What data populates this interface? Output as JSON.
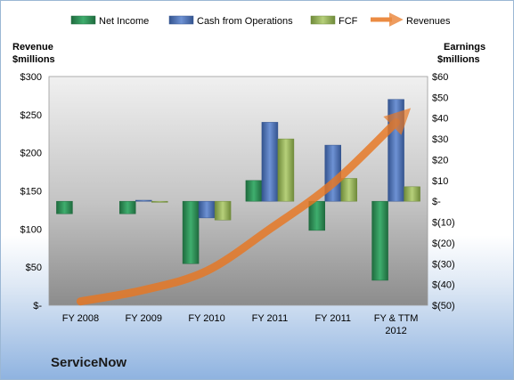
{
  "chart_data": {
    "type": "bar",
    "title": "",
    "company": "ServiceNow",
    "categories": [
      "FY 2008",
      "FY 2009",
      "FY 2010",
      "FY 2011",
      "FY 2011",
      "FY & TTM|2012"
    ],
    "left_axis": {
      "label_line1": "Revenue",
      "label_line2": "$millions",
      "range": [
        0,
        300
      ],
      "ticks": [
        0,
        50,
        100,
        150,
        200,
        250,
        300
      ],
      "tick_labels": [
        "$-",
        "$50",
        "$100",
        "$150",
        "$200",
        "$250",
        "$300"
      ]
    },
    "right_axis": {
      "label_line1": "Earnings",
      "label_line2": "$millions",
      "range": [
        -50,
        60
      ],
      "ticks": [
        -50,
        -40,
        -30,
        -20,
        -10,
        0,
        10,
        20,
        30,
        40,
        50,
        60
      ],
      "tick_labels": [
        "$(50)",
        "$(40)",
        "$(30)",
        "$(20)",
        "$(10)",
        "$-",
        "$10",
        "$20",
        "$30",
        "$40",
        "$50",
        "$60"
      ]
    },
    "series": [
      {
        "name": "Net Income",
        "type": "bar",
        "axis": "right",
        "color": "#2e8b57",
        "values": [
          -6,
          -6,
          -30,
          10,
          -14,
          -38
        ]
      },
      {
        "name": "Cash from Operations",
        "type": "bar",
        "axis": "right",
        "color": "#4f74b8",
        "values": [
          null,
          0.5,
          -8,
          38,
          27,
          49
        ]
      },
      {
        "name": "FCF",
        "type": "bar",
        "axis": "right",
        "color": "#9bbb59",
        "values": [
          null,
          -0.5,
          -9,
          30,
          11,
          7
        ]
      },
      {
        "name": "Revenues",
        "type": "line",
        "axis": "left",
        "color": "#e87722",
        "values": [
          5,
          20,
          45,
          100,
          160,
          240
        ]
      }
    ],
    "legend_position": "top",
    "grid": false
  }
}
